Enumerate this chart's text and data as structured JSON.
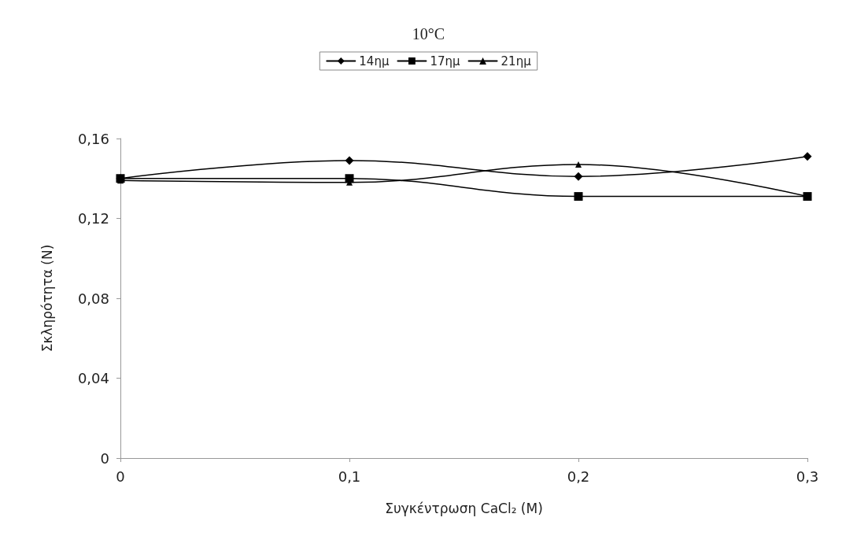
{
  "chart_data": {
    "type": "line",
    "title": "10°C",
    "xlabel": "Συγκέντρωση CaCl₂ (M)",
    "ylabel": "Σκληρότητα (N)",
    "x": [
      0,
      0.1,
      0.2,
      0.3
    ],
    "series": [
      {
        "name": "14ημ",
        "color": "#000000",
        "marker": "diamond",
        "values": [
          0.14,
          0.149,
          0.141,
          0.151
        ]
      },
      {
        "name": "17ημ",
        "color": "#000000",
        "marker": "square",
        "values": [
          0.14,
          0.14,
          0.131,
          0.131
        ]
      },
      {
        "name": "21ημ",
        "color": "#000000",
        "marker": "triangle",
        "values": [
          0.139,
          0.138,
          0.147,
          0.131
        ]
      }
    ],
    "xlim": [
      0,
      0.3
    ],
    "xticks": [
      0,
      {
        "value": 0.1,
        "label": "0,1"
      },
      {
        "value": 0.2,
        "label": "0,2"
      },
      {
        "value": 0.3,
        "label": "0,3"
      }
    ],
    "ylim": [
      0,
      0.16
    ],
    "yticks": [
      0,
      {
        "value": 0.04,
        "label": "0,04"
      },
      {
        "value": 0.08,
        "label": "0,08"
      },
      {
        "value": 0.12,
        "label": "0,12"
      },
      {
        "value": 0.16,
        "label": "0,16"
      }
    ],
    "grid": false,
    "legend": "top",
    "line_style": "solid"
  }
}
